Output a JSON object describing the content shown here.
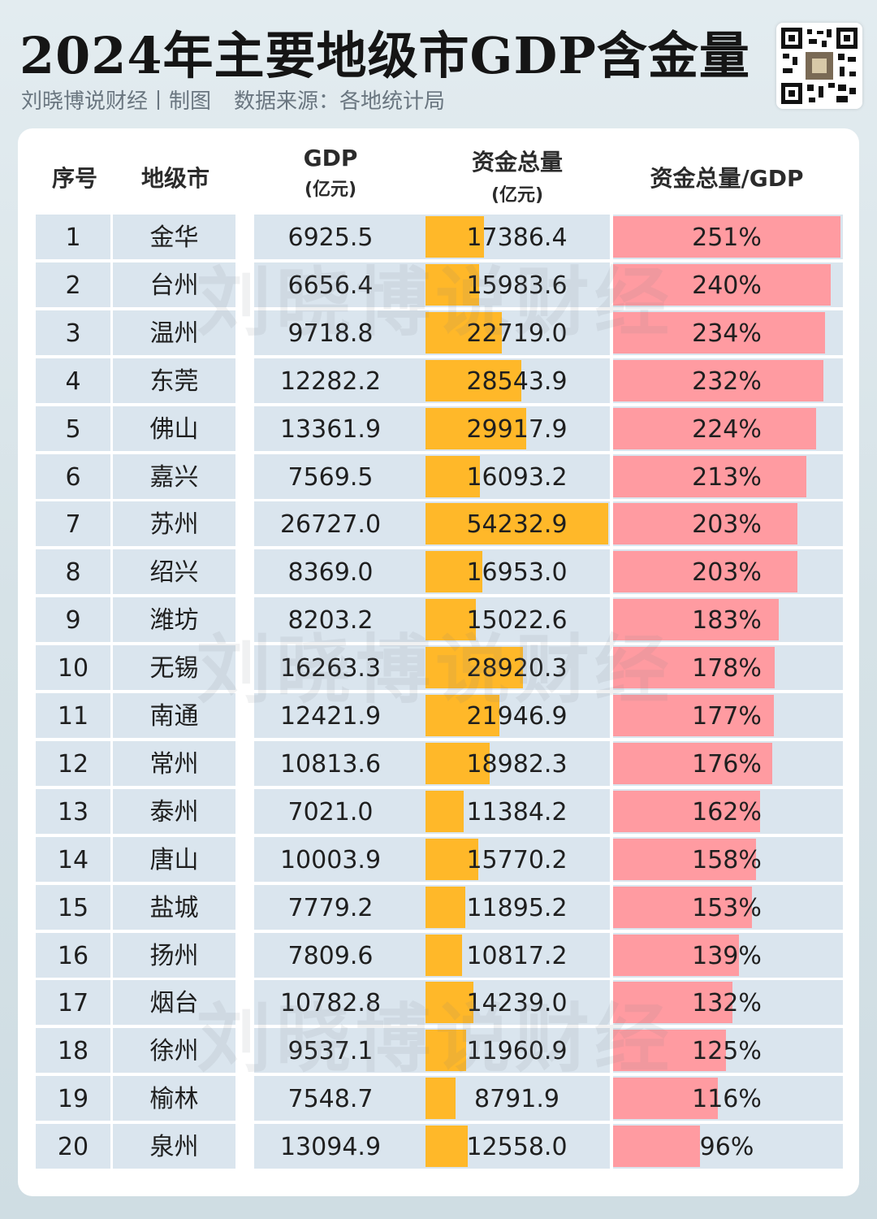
{
  "header": {
    "title": "2024年主要地级市GDP含金量",
    "credit": "刘晓博说财经丨制图",
    "source": "数据来源：各地统计局",
    "watermark": "刘晓博说财经"
  },
  "colors": {
    "fund_bar": "#ffb829",
    "ratio_bar": "#ff9ba1",
    "band": "#dae5ee",
    "card": "#ffffff"
  },
  "chart_data": {
    "type": "table",
    "columns": {
      "rank": "序号",
      "city": "地级市",
      "gdp": "GDP",
      "gdp_unit": "(亿元)",
      "fund": "资金总量",
      "fund_unit": "(亿元)",
      "ratio": "资金总量/GDP"
    },
    "rows": [
      {
        "rank": "1",
        "city": "金华",
        "gdp": "6925.5",
        "fund": "17386.4",
        "ratio": "251%"
      },
      {
        "rank": "2",
        "city": "台州",
        "gdp": "6656.4",
        "fund": "15983.6",
        "ratio": "240%"
      },
      {
        "rank": "3",
        "city": "温州",
        "gdp": "9718.8",
        "fund": "22719.0",
        "ratio": "234%"
      },
      {
        "rank": "4",
        "city": "东莞",
        "gdp": "12282.2",
        "fund": "28543.9",
        "ratio": "232%"
      },
      {
        "rank": "5",
        "city": "佛山",
        "gdp": "13361.9",
        "fund": "29917.9",
        "ratio": "224%"
      },
      {
        "rank": "6",
        "city": "嘉兴",
        "gdp": "7569.5",
        "fund": "16093.2",
        "ratio": "213%"
      },
      {
        "rank": "7",
        "city": "苏州",
        "gdp": "26727.0",
        "fund": "54232.9",
        "ratio": "203%"
      },
      {
        "rank": "8",
        "city": "绍兴",
        "gdp": "8369.0",
        "fund": "16953.0",
        "ratio": "203%"
      },
      {
        "rank": "9",
        "city": "潍坊",
        "gdp": "8203.2",
        "fund": "15022.6",
        "ratio": "183%"
      },
      {
        "rank": "10",
        "city": "无锡",
        "gdp": "16263.3",
        "fund": "28920.3",
        "ratio": "178%"
      },
      {
        "rank": "11",
        "city": "南通",
        "gdp": "12421.9",
        "fund": "21946.9",
        "ratio": "177%"
      },
      {
        "rank": "12",
        "city": "常州",
        "gdp": "10813.6",
        "fund": "18982.3",
        "ratio": "176%"
      },
      {
        "rank": "13",
        "city": "泰州",
        "gdp": "7021.0",
        "fund": "11384.2",
        "ratio": "162%"
      },
      {
        "rank": "14",
        "city": "唐山",
        "gdp": "10003.9",
        "fund": "15770.2",
        "ratio": "158%"
      },
      {
        "rank": "15",
        "city": "盐城",
        "gdp": "7779.2",
        "fund": "11895.2",
        "ratio": "153%"
      },
      {
        "rank": "16",
        "city": "扬州",
        "gdp": "7809.6",
        "fund": "10817.2",
        "ratio": "139%"
      },
      {
        "rank": "17",
        "city": "烟台",
        "gdp": "10782.8",
        "fund": "14239.0",
        "ratio": "132%"
      },
      {
        "rank": "18",
        "city": "徐州",
        "gdp": "9537.1",
        "fund": "11960.9",
        "ratio": "125%"
      },
      {
        "rank": "19",
        "city": "榆林",
        "gdp": "7548.7",
        "fund": "8791.9",
        "ratio": "116%"
      },
      {
        "rank": "20",
        "city": "泉州",
        "gdp": "13094.9",
        "fund": "12558.0",
        "ratio": "96%"
      }
    ]
  }
}
